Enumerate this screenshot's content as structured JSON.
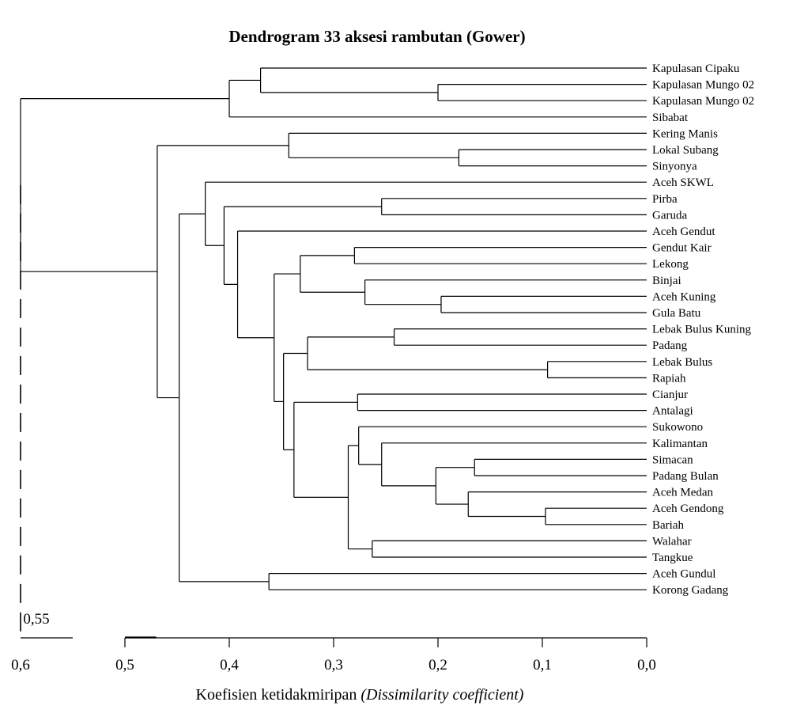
{
  "chart_data": {
    "type": "dendrogram",
    "title": "Dendrogram 33 aksesi rambutan (Gower)",
    "xlabel": "Koefisien ketidakmiripan",
    "xlabel_italic": "(Dissimilarity coefficient)",
    "xlim": [
      0.6,
      0.0
    ],
    "x_ticks": [
      "0,6",
      "0,5",
      "0,4",
      "0,3",
      "0,2",
      "0,1",
      "0,0"
    ],
    "x_tick_values": [
      0.6,
      0.5,
      0.4,
      0.3,
      0.2,
      0.1,
      0.0
    ],
    "cut_line": {
      "value": 0.6
    },
    "annotation": {
      "text": "0,55",
      "value": 0.55
    },
    "leaves": [
      "Kapulasan Cipaku",
      "Kapulasan Mungo 02",
      "Kapulasan Mungo 02",
      "Sibabat",
      "Kering Manis",
      "Lokal Subang",
      "Sinyonya",
      "Aceh SKWL",
      "Pirba",
      "Garuda",
      "Aceh Gendut",
      "Gendut Kair",
      "Lekong",
      "Binjai",
      "Aceh Kuning",
      "Gula Batu",
      "Lebak Bulus Kuning",
      "Padang",
      "Lebak Bulus",
      "Rapiah",
      "Cianjur",
      "Antalagi",
      "Sukowono",
      "Kalimantan",
      "Simacan",
      "Padang Bulan",
      "Aceh Medan",
      "Aceh Gendong",
      "Bariah",
      "Walahar",
      "Tangkue",
      "Aceh Gundul",
      "Korong Gadang"
    ],
    "merges": [
      {
        "a": "L1",
        "b": "L2",
        "height": 0.2
      },
      {
        "a": "L0",
        "b": "M0",
        "height": 0.37
      },
      {
        "a": "M1",
        "b": "L3",
        "height": 0.4
      },
      {
        "a": "L5",
        "b": "L6",
        "height": 0.18
      },
      {
        "a": "L4",
        "b": "M3",
        "height": 0.343
      },
      {
        "a": "L8",
        "b": "L9",
        "height": 0.254
      },
      {
        "a": "L11",
        "b": "L12",
        "height": 0.28
      },
      {
        "a": "L14",
        "b": "L15",
        "height": 0.197
      },
      {
        "a": "L13",
        "b": "M7",
        "height": 0.27
      },
      {
        "a": "M6",
        "b": "M8",
        "height": 0.332
      },
      {
        "a": "L16",
        "b": "L17",
        "height": 0.242
      },
      {
        "a": "L18",
        "b": "L19",
        "height": 0.095
      },
      {
        "a": "M10",
        "b": "M11",
        "height": 0.325
      },
      {
        "a": "L20",
        "b": "L21",
        "height": 0.277
      },
      {
        "a": "L24",
        "b": "L25",
        "height": 0.165
      },
      {
        "a": "L27",
        "b": "L28",
        "height": 0.097
      },
      {
        "a": "L26",
        "b": "M15",
        "height": 0.171
      },
      {
        "a": "M14",
        "b": "M16",
        "height": 0.202
      },
      {
        "a": "L23",
        "b": "M17",
        "height": 0.254
      },
      {
        "a": "L22",
        "b": "M18",
        "height": 0.276
      },
      {
        "a": "L29",
        "b": "L30",
        "height": 0.263
      },
      {
        "a": "M19",
        "b": "M20",
        "height": 0.286
      },
      {
        "a": "M13",
        "b": "M21",
        "height": 0.338
      },
      {
        "a": "M12",
        "b": "M22",
        "height": 0.348
      },
      {
        "a": "M9",
        "b": "M23",
        "height": 0.357
      },
      {
        "a": "L10",
        "b": "M24",
        "height": 0.392
      },
      {
        "a": "M5",
        "b": "M25",
        "height": 0.405
      },
      {
        "a": "L7",
        "b": "M26",
        "height": 0.423
      },
      {
        "a": "L31",
        "b": "L32",
        "height": 0.362
      },
      {
        "a": "M27",
        "b": "M28",
        "height": 0.448
      },
      {
        "a": "M4",
        "b": "M29",
        "height": 0.469
      },
      {
        "a": "M2",
        "b": "M30",
        "height": 0.6
      }
    ]
  }
}
